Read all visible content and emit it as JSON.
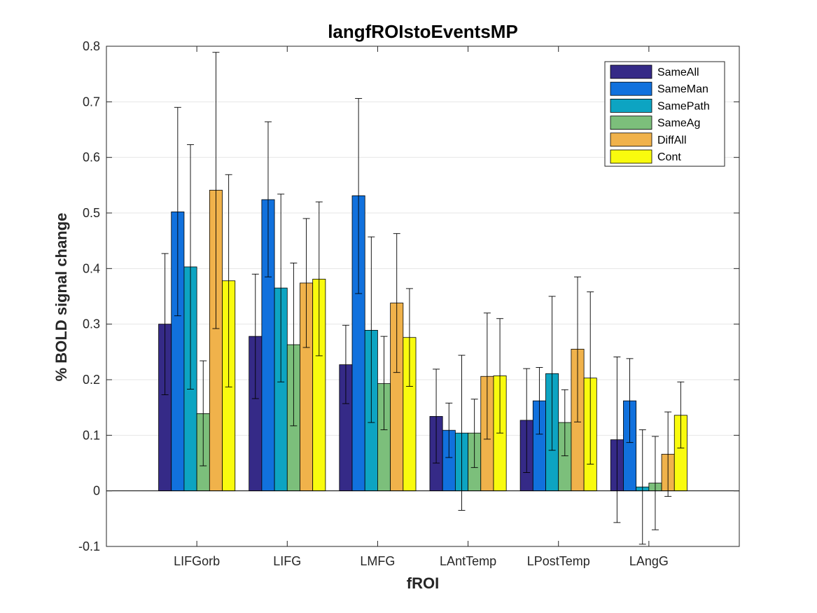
{
  "chart_data": {
    "type": "bar",
    "title": "langfROIstoEventsMP",
    "xlabel": "fROI",
    "ylabel": "% BOLD signal change",
    "ylim": [
      -0.1,
      0.8
    ],
    "yticks": [
      "-0.1",
      "0",
      "0.1",
      "0.2",
      "0.3",
      "0.4",
      "0.5",
      "0.6",
      "0.7",
      "0.8"
    ],
    "grid": "horizontal",
    "legend_position": "top-right",
    "categories": [
      "LIFGorb",
      "LIFG",
      "LMFG",
      "LAntTemp",
      "LPostTemp",
      "LAngG"
    ],
    "series": [
      {
        "name": "SameAll",
        "color": "#352a87",
        "values": [
          0.3,
          0.278,
          0.227,
          0.134,
          0.127,
          0.092
        ],
        "err_low": [
          0.173,
          0.166,
          0.157,
          0.05,
          0.033,
          -0.057
        ],
        "err_high": [
          0.427,
          0.39,
          0.298,
          0.219,
          0.22,
          0.241
        ]
      },
      {
        "name": "SameMan",
        "color": "#1171dd",
        "values": [
          0.502,
          0.524,
          0.531,
          0.109,
          0.162,
          0.162
        ],
        "err_low": [
          0.315,
          0.385,
          0.355,
          0.06,
          0.102,
          0.087
        ],
        "err_high": [
          0.69,
          0.664,
          0.706,
          0.158,
          0.222,
          0.238
        ]
      },
      {
        "name": "SamePath",
        "color": "#0da4c2",
        "values": [
          0.403,
          0.365,
          0.289,
          0.104,
          0.211,
          0.007
        ],
        "err_low": [
          0.183,
          0.196,
          0.123,
          -0.035,
          0.073,
          -0.096
        ],
        "err_high": [
          0.623,
          0.534,
          0.457,
          0.244,
          0.35,
          0.11
        ]
      },
      {
        "name": "SameAg",
        "color": "#7cbf7b",
        "values": [
          0.139,
          0.263,
          0.193,
          0.104,
          0.123,
          0.014
        ],
        "err_low": [
          0.045,
          0.117,
          0.11,
          0.042,
          0.063,
          -0.07
        ],
        "err_high": [
          0.234,
          0.41,
          0.278,
          0.165,
          0.182,
          0.098
        ]
      },
      {
        "name": "DiffAll",
        "color": "#f0b24b",
        "values": [
          0.541,
          0.374,
          0.338,
          0.206,
          0.255,
          0.066
        ],
        "err_low": [
          0.292,
          0.258,
          0.213,
          0.093,
          0.124,
          -0.01
        ],
        "err_high": [
          0.789,
          0.49,
          0.463,
          0.32,
          0.385,
          0.142
        ]
      },
      {
        "name": "Cont",
        "color": "#f9fb0e",
        "values": [
          0.378,
          0.381,
          0.276,
          0.207,
          0.203,
          0.136
        ],
        "err_low": [
          0.187,
          0.243,
          0.188,
          0.104,
          0.048,
          0.077
        ],
        "err_high": [
          0.569,
          0.52,
          0.364,
          0.31,
          0.358,
          0.196
        ]
      }
    ]
  }
}
